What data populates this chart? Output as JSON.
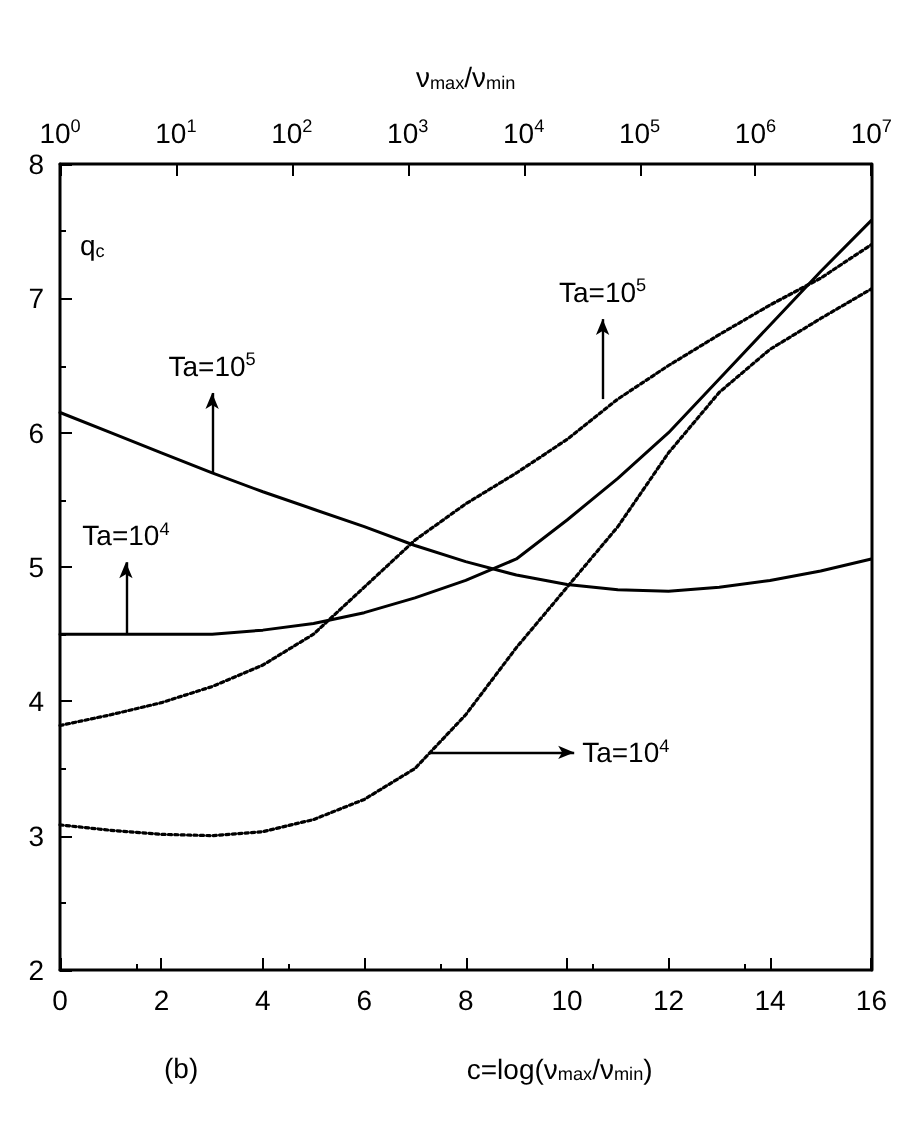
{
  "chart_data": {
    "type": "line",
    "xlabel": "c=log(ν$_{max}$/ν$_{min}$)",
    "ylabel": "q$_{c}$",
    "x2label": "ν$_{max}$/ν$_{min}$",
    "x": [
      0,
      1,
      2,
      3,
      4,
      5,
      6,
      7,
      8,
      9,
      10,
      11,
      12,
      13,
      14,
      15,
      16
    ],
    "series": [
      {
        "color": "#000000",
        "line_style": "solid",
        "values": [
          6.15,
          6.0,
          5.85,
          5.7,
          5.56,
          5.43,
          5.3,
          5.16,
          5.04,
          4.94,
          4.87,
          4.83,
          4.82,
          4.85,
          4.9,
          4.97,
          5.06
        ]
      },
      {
        "color": "#000000",
        "line_style": "solid",
        "values": [
          4.5,
          4.5,
          4.5,
          4.5,
          4.53,
          4.58,
          4.66,
          4.77,
          4.9,
          5.06,
          5.35,
          5.66,
          6.0,
          6.4,
          6.8,
          7.2,
          7.58
        ]
      },
      {
        "color": "#000000",
        "line_style": "dotted",
        "values": [
          3.82,
          3.9,
          3.99,
          4.11,
          4.27,
          4.5,
          4.85,
          5.2,
          5.47,
          5.7,
          5.95,
          6.25,
          6.5,
          6.73,
          6.95,
          7.15,
          7.4
        ]
      },
      {
        "color": "#000000",
        "line_style": "dotted",
        "values": [
          3.08,
          3.04,
          3.01,
          3.0,
          3.03,
          3.12,
          3.27,
          3.5,
          3.9,
          4.4,
          4.85,
          5.3,
          5.85,
          6.3,
          6.62,
          6.85,
          7.07
        ]
      }
    ],
    "xlim": [
      0,
      16
    ],
    "xticks": [
      0,
      2,
      4,
      6,
      8,
      10,
      12,
      14,
      16
    ],
    "ylim": [
      2,
      8
    ],
    "yticks": [
      2,
      3,
      4,
      5,
      6,
      7,
      8
    ],
    "log": "x2",
    "x2lim": [
      1,
      10000000
    ],
    "x2ticks": [
      {
        "value": 1,
        "label": "10$^{0}$"
      },
      {
        "value": 10,
        "label": "10$^{1}$"
      },
      {
        "value": 100,
        "label": "10$^{2}$"
      },
      {
        "value": 1000,
        "label": "10$^{3}$"
      },
      {
        "value": 10000,
        "label": "10$^{4}$"
      },
      {
        "value": 100000,
        "label": "10$^{5}$"
      },
      {
        "value": 1000000,
        "label": "10$^{6}$"
      },
      {
        "value": 10000000,
        "label": "10$^{7}$"
      }
    ],
    "annotations": [
      {
        "text": "Ta=10$^{5}$",
        "x": 3.0,
        "y": 5.7
      },
      {
        "text": "Ta=10$^{4}$",
        "x": 1.3,
        "y": 4.5
      },
      {
        "text": "Ta=10$^{5}$",
        "x": 10.7,
        "y": 6.25
      },
      {
        "text": "Ta=10$^{4}$",
        "x": 7.3,
        "y": 3.62
      },
      "(b)"
    ],
    "grid": false,
    "legend": false,
    "marker": "none"
  }
}
